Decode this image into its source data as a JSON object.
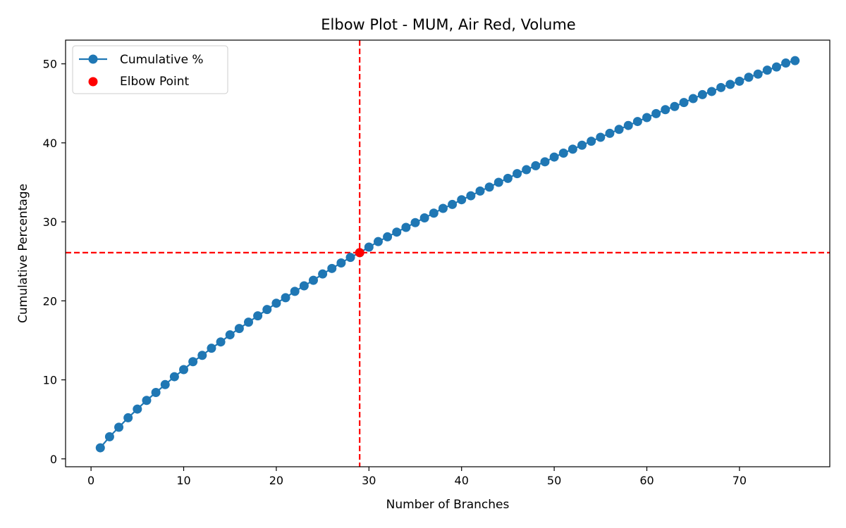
{
  "chart_data": {
    "type": "line",
    "title": "Elbow Plot - MUM, Air Red, Volume",
    "xlabel": "Number of Branches",
    "ylabel": "Cumulative Percentage",
    "xlim": [
      -2.75,
      79.75
    ],
    "ylim": [
      -1.0,
      53.0
    ],
    "xticks": [
      0,
      10,
      20,
      30,
      40,
      50,
      60,
      70
    ],
    "yticks": [
      0,
      10,
      20,
      30,
      40,
      50
    ],
    "series": [
      {
        "name": "Cumulative %",
        "color": "#1f77b4",
        "marker": "circle",
        "x": [
          1,
          2,
          3,
          4,
          5,
          6,
          7,
          8,
          9,
          10,
          11,
          12,
          13,
          14,
          15,
          16,
          17,
          18,
          19,
          20,
          21,
          22,
          23,
          24,
          25,
          26,
          27,
          28,
          29,
          30,
          31,
          32,
          33,
          34,
          35,
          36,
          37,
          38,
          39,
          40,
          41,
          42,
          43,
          44,
          45,
          46,
          47,
          48,
          49,
          50,
          51,
          52,
          53,
          54,
          55,
          56,
          57,
          58,
          59,
          60,
          61,
          62,
          63,
          64,
          65,
          66,
          67,
          68,
          69,
          70,
          71,
          72,
          73,
          74,
          75,
          76
        ],
        "y": [
          1.4,
          2.8,
          4.0,
          5.2,
          6.3,
          7.4,
          8.4,
          9.4,
          10.4,
          11.3,
          12.3,
          13.1,
          14.0,
          14.8,
          15.7,
          16.5,
          17.3,
          18.1,
          18.9,
          19.7,
          20.4,
          21.2,
          21.9,
          22.6,
          23.4,
          24.1,
          24.8,
          25.5,
          26.1,
          26.8,
          27.5,
          28.1,
          28.7,
          29.3,
          29.9,
          30.5,
          31.1,
          31.7,
          32.2,
          32.8,
          33.3,
          33.9,
          34.4,
          35.0,
          35.5,
          36.1,
          36.6,
          37.1,
          37.6,
          38.2,
          38.7,
          39.2,
          39.7,
          40.2,
          40.7,
          41.2,
          41.7,
          42.2,
          42.7,
          43.2,
          43.7,
          44.2,
          44.6,
          45.1,
          45.6,
          46.1,
          46.5,
          47.0,
          47.4,
          47.8,
          48.3,
          48.7,
          49.2,
          49.6,
          50.1,
          50.4
        ]
      },
      {
        "name": "Elbow Point",
        "color": "#ff0000",
        "marker": "circle",
        "x": [
          29
        ],
        "y": [
          26.1
        ]
      }
    ],
    "reference_lines": {
      "color": "#ff0000",
      "style": "dashed",
      "vertical_x": 29,
      "horizontal_y": 26.1
    },
    "legend_position": "top-left",
    "grid": false
  }
}
